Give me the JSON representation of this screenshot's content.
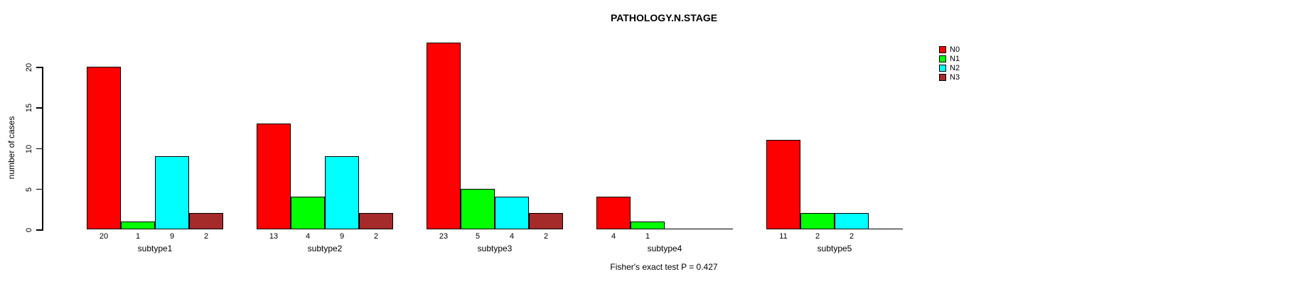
{
  "chart_data": {
    "type": "bar",
    "title": "PATHOLOGY.N.STAGE",
    "ylabel": "number of cases",
    "xlabel": "",
    "categories": [
      "subtype1",
      "subtype2",
      "subtype3",
      "subtype4",
      "subtype5"
    ],
    "series": [
      {
        "name": "N0",
        "color": "#ff0000",
        "values": [
          20,
          13,
          23,
          4,
          11
        ]
      },
      {
        "name": "N1",
        "color": "#00ff00",
        "values": [
          1,
          4,
          5,
          1,
          2
        ]
      },
      {
        "name": "N2",
        "color": "#00ffff",
        "values": [
          9,
          9,
          4,
          0,
          2
        ]
      },
      {
        "name": "N3",
        "color": "#a52a2a",
        "values": [
          2,
          2,
          2,
          0,
          0
        ]
      }
    ],
    "bar_value_labels": {
      "subtype1": [
        "20",
        "1",
        "9",
        "2"
      ],
      "subtype2": [
        "13",
        "4",
        "9",
        "2"
      ],
      "subtype3": [
        "23",
        "5",
        "4",
        "2"
      ],
      "subtype4": [
        "4",
        "1",
        "",
        ""
      ],
      "subtype5": [
        "11",
        "2",
        "2",
        ""
      ]
    },
    "yticks": [
      0,
      5,
      10,
      15,
      20
    ],
    "ylim": [
      0,
      20
    ],
    "grid": false,
    "legend_position": "top-right",
    "annotation": "Fisher's exact test P = 0.427",
    "notes": "zero-value bars drawn as flat baseline segments with no value label"
  }
}
